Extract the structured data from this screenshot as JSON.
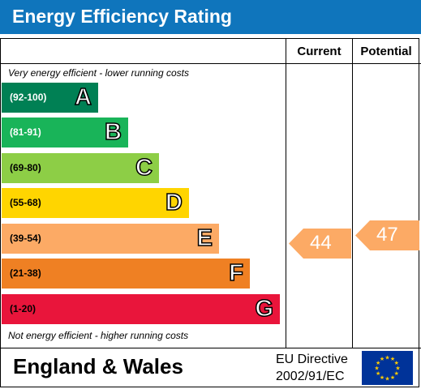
{
  "header": {
    "title": "Energy Efficiency Rating",
    "background": "#0f75bc"
  },
  "columns": {
    "current_label": "Current",
    "potential_label": "Potential"
  },
  "captions": {
    "top": "Very energy efficient - lower running costs",
    "bottom": "Not energy efficient - higher running costs"
  },
  "bands": [
    {
      "range": "(92-100)",
      "letter": "A",
      "color": "#008054",
      "range_color": "#ffffff"
    },
    {
      "range": "(81-91)",
      "letter": "B",
      "color": "#19b459",
      "range_color": "#ffffff"
    },
    {
      "range": "(69-80)",
      "letter": "C",
      "color": "#8dce46",
      "range_color": "#000000"
    },
    {
      "range": "(55-68)",
      "letter": "D",
      "color": "#ffd500",
      "range_color": "#000000"
    },
    {
      "range": "(39-54)",
      "letter": "E",
      "color": "#fcaa65",
      "range_color": "#000000"
    },
    {
      "range": "(21-38)",
      "letter": "F",
      "color": "#ef8023",
      "range_color": "#000000"
    },
    {
      "range": "(1-20)",
      "letter": "G",
      "color": "#e9153b",
      "range_color": "#000000"
    }
  ],
  "ratings": {
    "current": {
      "value": "44",
      "band": "E",
      "color": "#fcaa65"
    },
    "potential": {
      "value": "47",
      "band": "E",
      "color": "#fcaa65"
    }
  },
  "footer": {
    "region": "England & Wales",
    "directive_line1": "EU Directive",
    "directive_line2": "2002/91/EC",
    "flag_icon": "eu-flag-icon"
  }
}
